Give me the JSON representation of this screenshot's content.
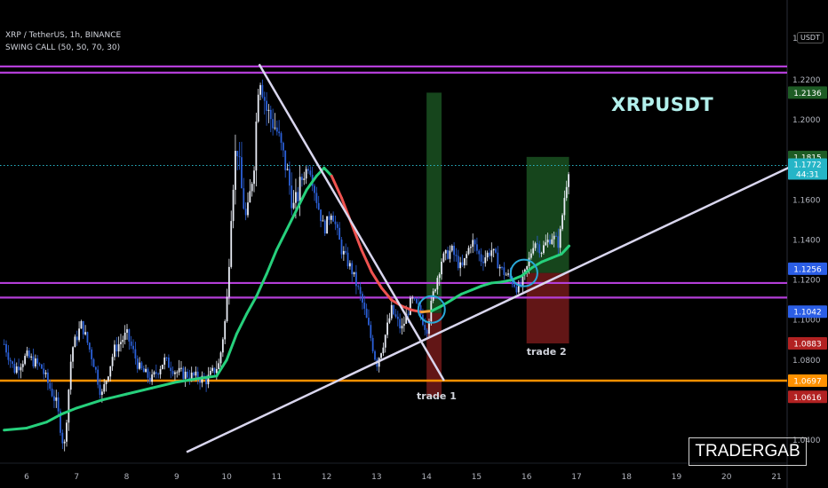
{
  "header": {
    "symbol_line": "XRP / TetherUS, 1h, BINANCE",
    "indicator_line": "SWING CALL (50, 50, 70, 30)"
  },
  "watermark": "XRPUSDT",
  "logo_text": "TRADERGAB",
  "unit_label": "USDT",
  "colors": {
    "background": "#000000",
    "candle_up": "#e8ecf5",
    "candle_down": "#2b60d8",
    "resistance_line": "#b43ed8",
    "support_line": "#ff9100",
    "trendline": "#d9d6ee",
    "ma_bull": "#26d07c",
    "ma_bear": "#ef5350",
    "ma_neutral": "#f7a33a",
    "target_zone": "#1e5c25",
    "stop_zone": "#7a1c1c",
    "last_price": "#25b5c7",
    "price_dotted": "#2ab7c9"
  },
  "chart_data": {
    "type": "candlestick",
    "pair": "XRP / TetherUS",
    "timeframe": "1h",
    "exchange": "BINANCE",
    "x_ticks": [
      "6",
      "7",
      "8",
      "9",
      "10",
      "11",
      "12",
      "13",
      "14",
      "15",
      "16",
      "17",
      "18",
      "19",
      "20",
      "21"
    ],
    "y_ticks": [
      "1.2200",
      "1.2000",
      "1.1600",
      "1.1400",
      "1.1200",
      "1.1000",
      "1.0800",
      "1.0400"
    ],
    "price_labels": [
      {
        "text": "1.2136",
        "value": 1.2136,
        "color": "#1e5c25"
      },
      {
        "text": "1.1815",
        "value": 1.1815,
        "color": "#1e5c25"
      },
      {
        "text": "1.1256",
        "value": 1.1256,
        "color": "#2b5ee6"
      },
      {
        "text": "1.1042",
        "value": 1.1042,
        "color": "#2b5ee6"
      },
      {
        "text": "1.0883",
        "value": 1.0883,
        "color": "#b22222"
      },
      {
        "text": "1.0697",
        "value": 1.0697,
        "color": "#ff9100"
      },
      {
        "text": "1.0616",
        "value": 1.0616,
        "color": "#b22222"
      }
    ],
    "last_price": {
      "text": "1.1772",
      "countdown": "44:31",
      "value": 1.1772
    },
    "resistance_lines": [
      1.2267,
      1.2236,
      1.1185,
      1.1112
    ],
    "support_line": 1.0697,
    "annotations": [
      {
        "text": "trade 1",
        "day": 14.2,
        "value": 1.0605
      },
      {
        "text": "trade 2",
        "day": 16.4,
        "value": 1.0825
      }
    ],
    "trades": [
      {
        "name": "trade 1",
        "entry": 1.1035,
        "target": 1.2136,
        "stop": 1.0616,
        "start_day": 14.0,
        "end_day": 14.3
      },
      {
        "name": "trade 2",
        "entry": 1.1235,
        "target": 1.1815,
        "stop": 1.0883,
        "start_day": 16.0,
        "end_day": 16.85
      }
    ],
    "trendlines": [
      {
        "from": [
          10.65,
          1.2278
        ],
        "to": [
          14.35,
          1.0697
        ]
      },
      {
        "from": [
          9.2,
          1.034
        ],
        "to": [
          21.7,
          1.1815
        ]
      }
    ],
    "close_path": [
      [
        5.55,
        1.088
      ],
      [
        5.75,
        1.075
      ],
      [
        6.0,
        1.082
      ],
      [
        6.3,
        1.076
      ],
      [
        6.6,
        1.058
      ],
      [
        6.75,
        1.035
      ],
      [
        6.9,
        1.085
      ],
      [
        7.1,
        1.098
      ],
      [
        7.35,
        1.078
      ],
      [
        7.5,
        1.062
      ],
      [
        7.75,
        1.085
      ],
      [
        8.0,
        1.093
      ],
      [
        8.25,
        1.076
      ],
      [
        8.5,
        1.07
      ],
      [
        8.75,
        1.08
      ],
      [
        9.0,
        1.074
      ],
      [
        9.3,
        1.072
      ],
      [
        9.6,
        1.07
      ],
      [
        9.85,
        1.078
      ],
      [
        10.0,
        1.105
      ],
      [
        10.1,
        1.16
      ],
      [
        10.2,
        1.19
      ],
      [
        10.3,
        1.165
      ],
      [
        10.4,
        1.148
      ],
      [
        10.55,
        1.18
      ],
      [
        10.65,
        1.225
      ],
      [
        10.8,
        1.205
      ],
      [
        11.0,
        1.195
      ],
      [
        11.2,
        1.175
      ],
      [
        11.35,
        1.155
      ],
      [
        11.5,
        1.17
      ],
      [
        11.65,
        1.178
      ],
      [
        11.8,
        1.16
      ],
      [
        11.95,
        1.145
      ],
      [
        12.1,
        1.155
      ],
      [
        12.3,
        1.135
      ],
      [
        12.5,
        1.125
      ],
      [
        12.7,
        1.11
      ],
      [
        12.85,
        1.095
      ],
      [
        13.0,
        1.078
      ],
      [
        13.15,
        1.09
      ],
      [
        13.3,
        1.105
      ],
      [
        13.5,
        1.095
      ],
      [
        13.7,
        1.11
      ],
      [
        13.85,
        1.105
      ],
      [
        14.0,
        1.095
      ],
      [
        14.15,
        1.115
      ],
      [
        14.3,
        1.13
      ],
      [
        14.5,
        1.135
      ],
      [
        14.7,
        1.125
      ],
      [
        14.9,
        1.14
      ],
      [
        15.1,
        1.13
      ],
      [
        15.3,
        1.135
      ],
      [
        15.5,
        1.125
      ],
      [
        15.7,
        1.12
      ],
      [
        15.85,
        1.115
      ],
      [
        16.0,
        1.125
      ],
      [
        16.15,
        1.14
      ],
      [
        16.3,
        1.135
      ],
      [
        16.5,
        1.142
      ],
      [
        16.65,
        1.138
      ],
      [
        16.75,
        1.16
      ],
      [
        16.85,
        1.1772
      ]
    ],
    "ma_path": [
      [
        5.55,
        1.045
      ],
      [
        6.0,
        1.046
      ],
      [
        6.4,
        1.049
      ],
      [
        6.7,
        1.053
      ],
      [
        7.0,
        1.056
      ],
      [
        7.5,
        1.06
      ],
      [
        8.0,
        1.063
      ],
      [
        8.5,
        1.066
      ],
      [
        9.0,
        1.069
      ],
      [
        9.5,
        1.071
      ],
      [
        9.8,
        1.072
      ],
      [
        10.0,
        1.08
      ],
      [
        10.2,
        1.093
      ],
      [
        10.4,
        1.103
      ],
      [
        10.6,
        1.112
      ],
      [
        10.8,
        1.123
      ],
      [
        11.0,
        1.135
      ],
      [
        11.2,
        1.145
      ],
      [
        11.4,
        1.155
      ],
      [
        11.6,
        1.165
      ],
      [
        11.8,
        1.172
      ],
      [
        11.95,
        1.176
      ],
      [
        12.1,
        1.172
      ],
      [
        12.3,
        1.161
      ],
      [
        12.5,
        1.148
      ],
      [
        12.7,
        1.135
      ],
      [
        12.9,
        1.124
      ],
      [
        13.1,
        1.116
      ],
      [
        13.3,
        1.11
      ],
      [
        13.5,
        1.107
      ],
      [
        13.7,
        1.105
      ],
      [
        13.9,
        1.104
      ],
      [
        14.1,
        1.1045
      ],
      [
        14.3,
        1.107
      ],
      [
        14.5,
        1.11
      ],
      [
        14.7,
        1.113
      ],
      [
        14.9,
        1.115
      ],
      [
        15.1,
        1.117
      ],
      [
        15.3,
        1.1185
      ],
      [
        15.5,
        1.119
      ],
      [
        15.7,
        1.12
      ],
      [
        15.9,
        1.122
      ],
      [
        16.1,
        1.126
      ],
      [
        16.3,
        1.129
      ],
      [
        16.5,
        1.131
      ],
      [
        16.7,
        1.133
      ],
      [
        16.85,
        1.137
      ]
    ]
  }
}
